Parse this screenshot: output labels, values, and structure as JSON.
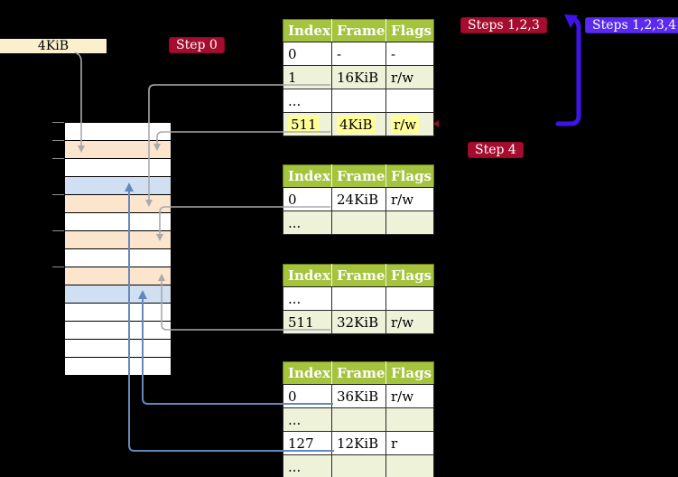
{
  "frame_size_label": "4KiB",
  "badges": {
    "step0": "Step 0",
    "steps123": "Steps 1,2,3",
    "steps1234": "Steps 1,2,3,4",
    "step4": "Step 4"
  },
  "colors": {
    "crimson_badge": "#a60c2e",
    "violet_badge": "#5a2af0",
    "violet_arrow": "#4013ea",
    "table_header_green": "#a4c43e",
    "table_row_green": "#edf2d9",
    "highlight_yellow": "#ffff99",
    "memory_orange": "#fbe5cd",
    "memory_blue": "#d0e0f2",
    "frame_box_cream": "#fbf0cd",
    "gray_arrow": "#a9a9b0",
    "blue_arrow": "#6488bb"
  },
  "page_tables": [
    {
      "name": "page-table-top",
      "headers": [
        "Index",
        "Frame",
        "Flags"
      ],
      "rows": [
        {
          "cells": [
            "0",
            "-",
            "-"
          ],
          "highlight": false
        },
        {
          "cells": [
            "1",
            "16KiB",
            "r/w"
          ],
          "highlight": false
        },
        {
          "cells": [
            "...",
            "",
            ""
          ],
          "highlight": false
        },
        {
          "cells": [
            "511",
            "4KiB",
            "r/w"
          ],
          "highlight": true
        }
      ]
    },
    {
      "name": "page-table-second",
      "headers": [
        "Index",
        "Frame",
        "Flags"
      ],
      "rows": [
        {
          "cells": [
            "0",
            "24KiB",
            "r/w"
          ],
          "highlight": false
        },
        {
          "cells": [
            "...",
            "",
            ""
          ],
          "highlight": false
        }
      ]
    },
    {
      "name": "page-table-third",
      "headers": [
        "Index",
        "Frame",
        "Flags"
      ],
      "rows": [
        {
          "cells": [
            "...",
            "",
            ""
          ],
          "highlight": false
        },
        {
          "cells": [
            "511",
            "32KiB",
            "r/w"
          ],
          "highlight": false
        }
      ]
    },
    {
      "name": "page-table-bottom",
      "headers": [
        "Index",
        "Frame",
        "Flags"
      ],
      "rows": [
        {
          "cells": [
            "0",
            "36KiB",
            "r/w"
          ],
          "highlight": false
        },
        {
          "cells": [
            "...",
            "",
            ""
          ],
          "highlight": false
        },
        {
          "cells": [
            "127",
            "12KiB",
            "r"
          ],
          "highlight": false
        },
        {
          "cells": [
            "...",
            "",
            ""
          ],
          "highlight": false
        }
      ]
    }
  ],
  "memory": {
    "rows": [
      "white",
      "orange",
      "white",
      "blue",
      "orange",
      "white",
      "orange",
      "white",
      "orange",
      "blue",
      "white",
      "white",
      "white",
      "white"
    ]
  }
}
